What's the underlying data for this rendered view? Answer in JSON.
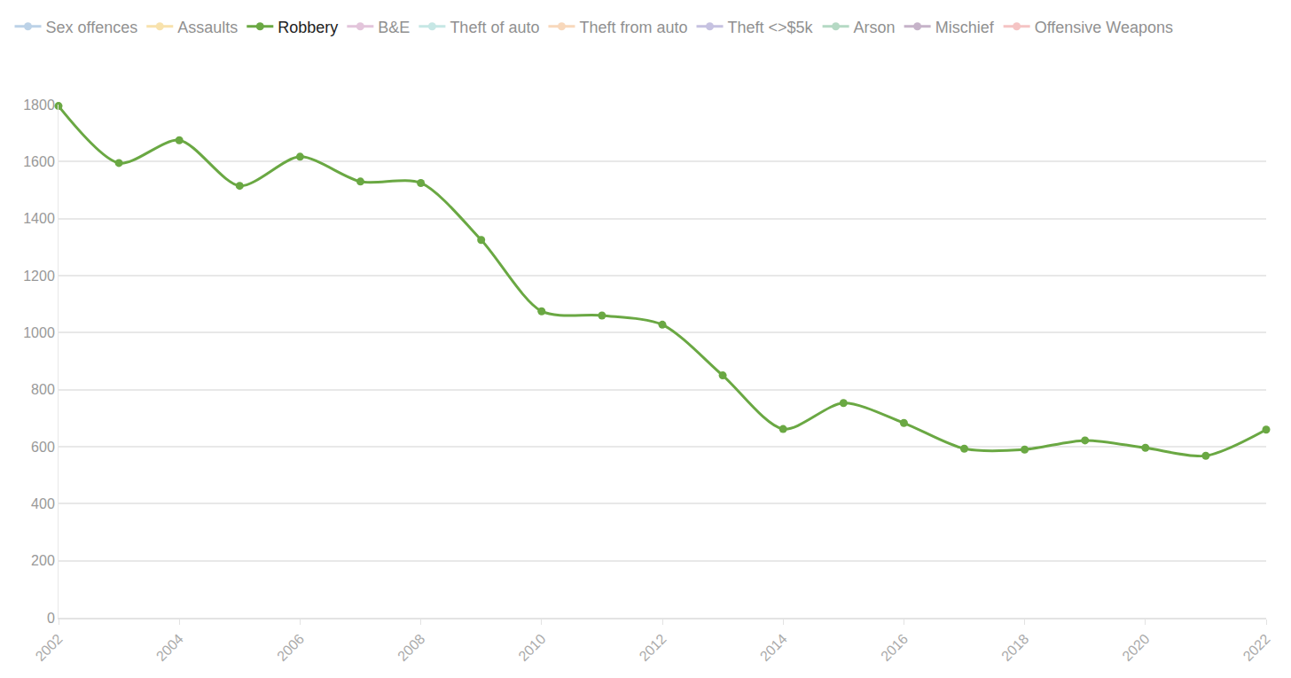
{
  "chart_data": {
    "type": "line",
    "x": [
      2002,
      2003,
      2004,
      2005,
      2006,
      2007,
      2008,
      2009,
      2010,
      2011,
      2012,
      2013,
      2014,
      2015,
      2016,
      2017,
      2018,
      2019,
      2020,
      2021,
      2022
    ],
    "series": [
      {
        "name": "Sex offences",
        "color": "#7aa6d0",
        "values": [
          null,
          null,
          null,
          null,
          null,
          null,
          null,
          null,
          null,
          null,
          null,
          null,
          null,
          null,
          null,
          null,
          null,
          null,
          null,
          null,
          null
        ]
      },
      {
        "name": "Assaults",
        "color": "#f2c75c",
        "values": [
          null,
          null,
          null,
          null,
          null,
          null,
          null,
          null,
          null,
          null,
          null,
          null,
          null,
          null,
          null,
          null,
          null,
          null,
          null,
          null,
          null
        ]
      },
      {
        "name": "Robbery",
        "color": "#6aa843",
        "values": [
          1795,
          1595,
          1675,
          1515,
          1617,
          1530,
          1525,
          1325,
          1075,
          1060,
          1028,
          850,
          662,
          753,
          683,
          593,
          590,
          622,
          596,
          568,
          660
        ]
      },
      {
        "name": "B&E",
        "color": "#c98cb8",
        "values": [
          null,
          null,
          null,
          null,
          null,
          null,
          null,
          null,
          null,
          null,
          null,
          null,
          null,
          null,
          null,
          null,
          null,
          null,
          null,
          null,
          null
        ]
      },
      {
        "name": "Theft of auto",
        "color": "#8fd0cc",
        "values": [
          null,
          null,
          null,
          null,
          null,
          null,
          null,
          null,
          null,
          null,
          null,
          null,
          null,
          null,
          null,
          null,
          null,
          null,
          null,
          null,
          null
        ]
      },
      {
        "name": "Theft from auto",
        "color": "#f2b27a",
        "values": [
          null,
          null,
          null,
          null,
          null,
          null,
          null,
          null,
          null,
          null,
          null,
          null,
          null,
          null,
          null,
          null,
          null,
          null,
          null,
          null,
          null
        ]
      },
      {
        "name": "Theft <>$5k",
        "color": "#8f86c4",
        "values": [
          null,
          null,
          null,
          null,
          null,
          null,
          null,
          null,
          null,
          null,
          null,
          null,
          null,
          null,
          null,
          null,
          null,
          null,
          null,
          null,
          null
        ]
      },
      {
        "name": "Arson",
        "color": "#6db58a",
        "values": [
          null,
          null,
          null,
          null,
          null,
          null,
          null,
          null,
          null,
          null,
          null,
          null,
          null,
          null,
          null,
          null,
          null,
          null,
          null,
          null,
          null
        ]
      },
      {
        "name": "Mischief",
        "color": "#8e6a95",
        "values": [
          null,
          null,
          null,
          null,
          null,
          null,
          null,
          null,
          null,
          null,
          null,
          null,
          null,
          null,
          null,
          null,
          null,
          null,
          null,
          null,
          null
        ]
      },
      {
        "name": "Offensive Weapons",
        "color": "#ec8a8a",
        "values": [
          null,
          null,
          null,
          null,
          null,
          null,
          null,
          null,
          null,
          null,
          null,
          null,
          null,
          null,
          null,
          null,
          null,
          null,
          null,
          null,
          null
        ]
      }
    ],
    "xlim": [
      2002,
      2022
    ],
    "xticks": [
      2002,
      2004,
      2006,
      2008,
      2010,
      2012,
      2014,
      2016,
      2018,
      2020,
      2022
    ],
    "ylim": [
      0,
      1800
    ],
    "yticks": [
      0,
      200,
      400,
      600,
      800,
      1000,
      1200,
      1400,
      1600,
      1800
    ],
    "grid": true,
    "legend": "top",
    "marker": "circle",
    "line_style": "spline"
  }
}
